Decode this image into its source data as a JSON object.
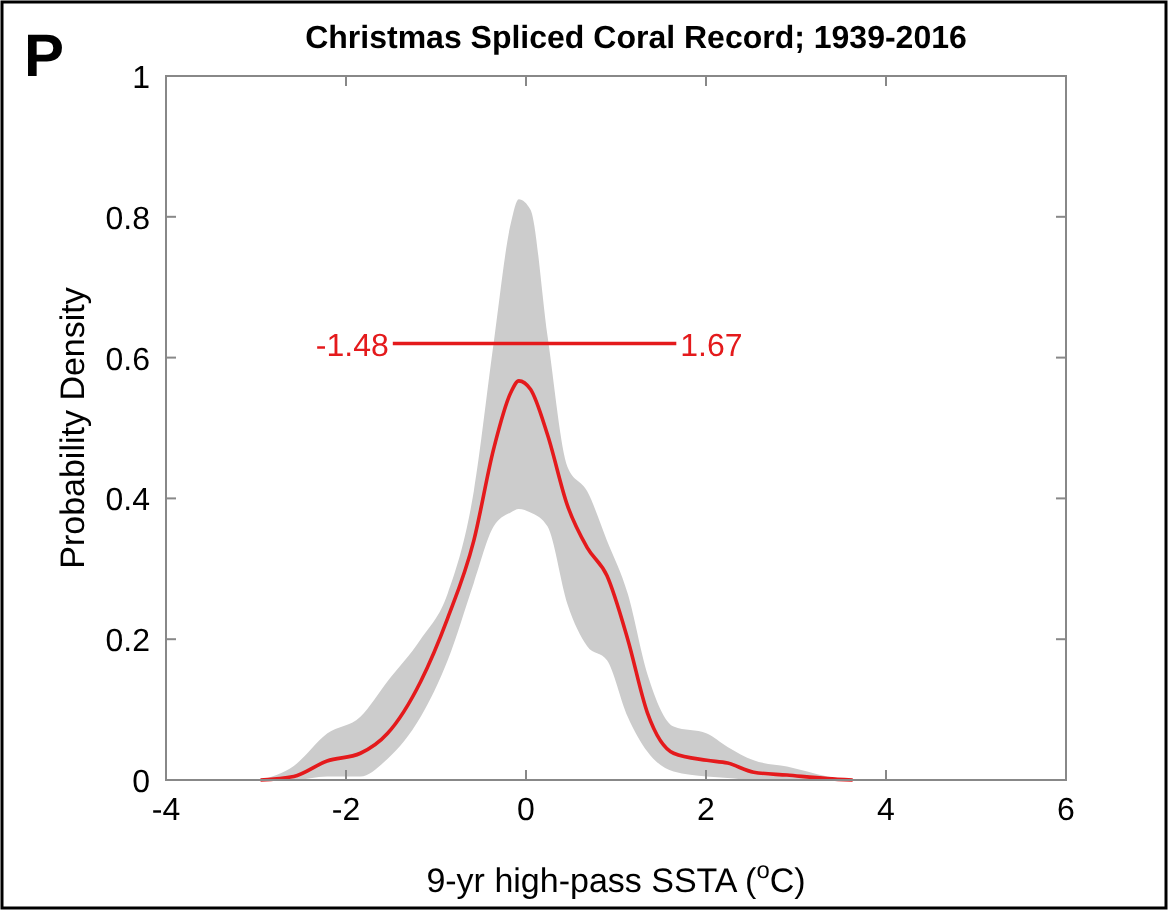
{
  "chart_data": {
    "type": "line",
    "title": "Christmas Spliced Coral Record; 1939-2016",
    "xlabel": "9-yr high-pass SSTA ($^{o}$C)",
    "ylabel": "Probability Density",
    "xlim": [
      -4,
      6
    ],
    "xticks": [
      -4,
      -2,
      0,
      2,
      4,
      6
    ],
    "ylim": [
      0,
      1
    ],
    "yticks": [
      0,
      0.2,
      0.4,
      0.6,
      0.8,
      1
    ],
    "series": [
      {
        "color": "#e41a1c",
        "x": [
          -2.95,
          -2.58,
          -2.21,
          -1.84,
          -1.54,
          -1.17,
          -0.87,
          -0.58,
          -0.36,
          -0.17,
          -0.08,
          0.05,
          0.24,
          0.46,
          0.68,
          0.9,
          1.13,
          1.35,
          1.64,
          2.01,
          2.24,
          2.53,
          2.9,
          3.35,
          3.63
        ],
        "values": [
          0,
          0.005,
          0.027,
          0.038,
          0.066,
          0.14,
          0.23,
          0.34,
          0.47,
          0.55,
          0.567,
          0.555,
          0.49,
          0.39,
          0.33,
          0.29,
          0.2,
          0.095,
          0.038,
          0.028,
          0.024,
          0.011,
          0.007,
          0.002,
          0
        ],
        "upper": [
          0,
          0.02,
          0.066,
          0.09,
          0.14,
          0.2,
          0.265,
          0.41,
          0.62,
          0.79,
          0.825,
          0.81,
          0.63,
          0.445,
          0.41,
          0.34,
          0.265,
          0.15,
          0.076,
          0.066,
          0.047,
          0.028,
          0.019,
          0.005,
          0
        ],
        "lower": [
          0,
          0,
          0.005,
          0.005,
          0.03,
          0.09,
          0.17,
          0.28,
          0.36,
          0.38,
          0.385,
          0.38,
          0.36,
          0.25,
          0.19,
          0.17,
          0.09,
          0.04,
          0.012,
          0.005,
          0.003,
          0,
          0,
          0,
          0
        ]
      },
      {
        "color": "#e41a1c",
        "x": [
          -1.48,
          1.67
        ],
        "values": [
          0.62,
          0.62
        ]
      }
    ],
    "annotations": [
      "P",
      {
        "text": "-1.48",
        "x": -1.48,
        "y": 0.62
      },
      {
        "text": "1.67",
        "x": 1.67,
        "y": 0.62
      }
    ]
  }
}
